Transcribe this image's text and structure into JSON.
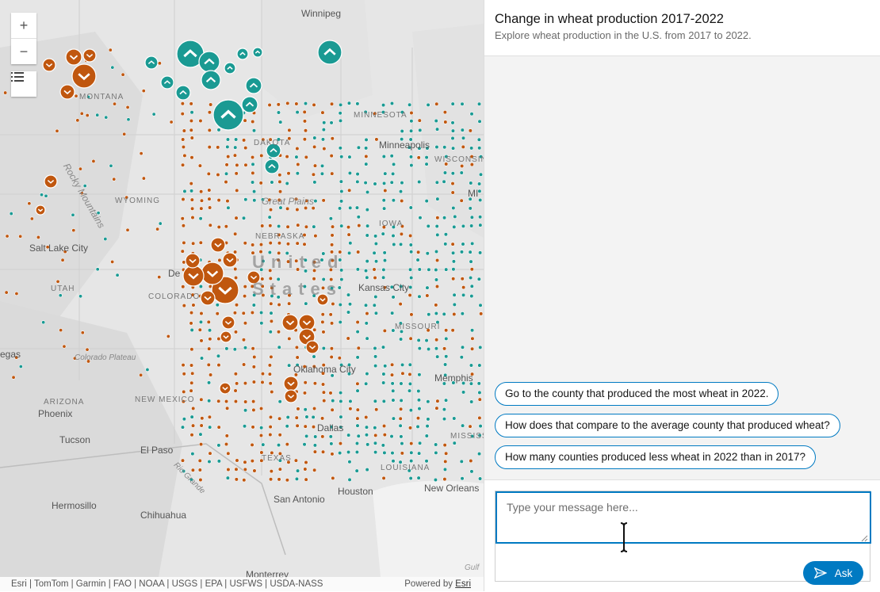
{
  "map": {
    "zoom_in": "+",
    "zoom_out": "−",
    "attribution": "Esri | TomTom | Garmin | FAO | NOAA | USGS | EPA | USFWS | USDA-NASS",
    "powered_by": "Powered by",
    "powered_by_link": "Esri",
    "legend_icon": "list-icon",
    "increase_color": "#1a9a93",
    "decrease_color": "#c0570f",
    "places": [
      "Winnipeg",
      "Minneapolis",
      "Salt Lake City",
      "Kansas City",
      "Oklahoma City",
      "Memphis",
      "Dallas",
      "Houston",
      "San Antonio",
      "New Orleans",
      "El Paso",
      "Tucson",
      "Phoenix",
      "Hermosillo",
      "Chihuahua",
      "Monterrey",
      "Great Plains",
      "Colorado Plateau",
      "Rio Grande",
      "Rocky Mountains",
      "egas",
      "De",
      "Gulf",
      "MI"
    ],
    "states": [
      "MONTANA",
      "WYOMING",
      "NEBRASKA",
      "COLORADO",
      "UTAH",
      "IOWA",
      "MISSOURI",
      "ARIZONA",
      "NEW MEXICO",
      "TEXAS",
      "LOUISIANA",
      "MISSISSIPPI",
      "MINNESOTA",
      "WISCONSIN",
      "DAKOTA"
    ],
    "country_label": "United States"
  },
  "panel": {
    "title": "Change in wheat production 2017-2022",
    "subtitle": "Explore wheat production in the U.S. from 2017 to 2022.",
    "suggestions": [
      "Go to the county that produced the most wheat in 2022.",
      "How does that compare to the average county that produced wheat?",
      "How many counties produced less wheat in 2022 than in 2017?"
    ],
    "input_placeholder": "Type your message here...",
    "ask_label": "Ask"
  }
}
